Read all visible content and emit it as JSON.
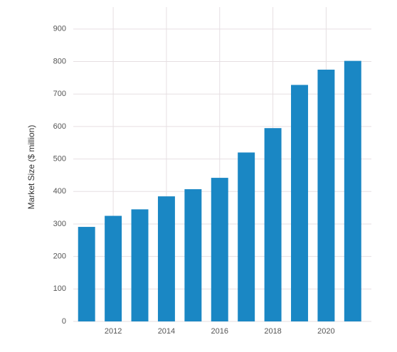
{
  "chart_data": {
    "type": "bar",
    "y_label": "Market Size ($ million)",
    "x": [
      2011,
      2012,
      2013,
      2014,
      2015,
      2016,
      2017,
      2018,
      2019,
      2020,
      2021
    ],
    "values": [
      291,
      325,
      345,
      385,
      407,
      442,
      520,
      595,
      728,
      775,
      802
    ],
    "color": "#1a87c4",
    "xlim": [
      2010.5,
      2021.7
    ],
    "xticks": [
      2012,
      2014,
      2016,
      2018,
      2020
    ],
    "ylim": [
      0,
      950
    ],
    "yticks": [
      0,
      100,
      200,
      300,
      400,
      500,
      600,
      700,
      800,
      900
    ],
    "grid": true
  }
}
